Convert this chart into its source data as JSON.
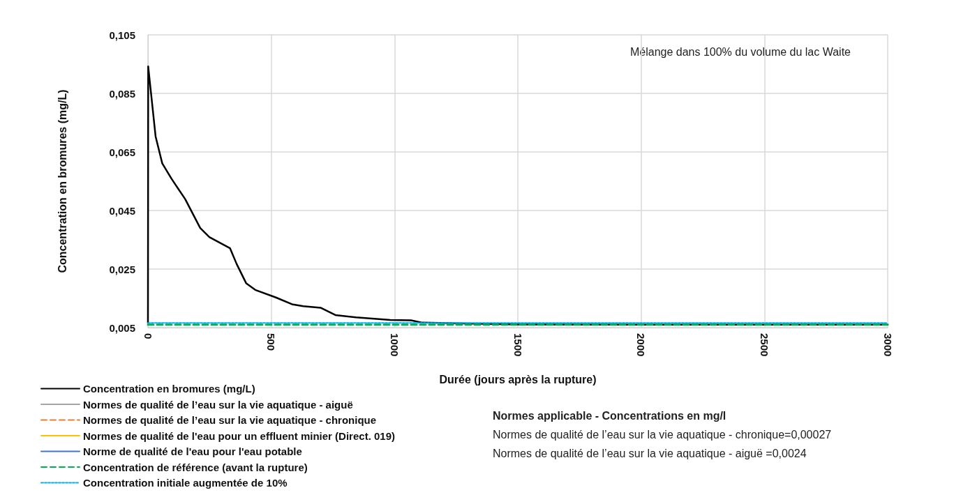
{
  "chart_data": {
    "type": "line",
    "xlabel": "Durée (jours après la rupture)",
    "ylabel": "Concentration en bromures (mg/L)",
    "xlim": [
      0,
      3000
    ],
    "xticks": [
      0,
      500,
      1000,
      1500,
      2000,
      2500,
      3000
    ],
    "ylim": [
      0.005,
      0.105
    ],
    "yticks": [
      {
        "value": 0.005,
        "label": "0,005"
      },
      {
        "value": 0.025,
        "label": "0,025"
      },
      {
        "value": 0.045,
        "label": "0,045"
      },
      {
        "value": 0.065,
        "label": "0,065"
      },
      {
        "value": 0.085,
        "label": "0,085"
      },
      {
        "value": 0.105,
        "label": "0,105"
      }
    ],
    "grid": true,
    "legend": "bottom left",
    "marker": "none",
    "annotations": [
      "Mélange dans 100% du volume du lac Waite",
      "Normes applicable - Concentrations en mg/l",
      "Normes de qualité de l’eau sur la vie aquatique - chronique=0,00027",
      "Normes de qualité de l’eau sur la vie aquatique - aiguë =0,0024"
    ],
    "series": [
      {
        "name": "Concentration en bromures (mg/L)",
        "color": "#000000",
        "line_style": "solid",
        "x": [
          0,
          1,
          31,
          58,
          96,
          151,
          212,
          249,
          333,
          360,
          398,
          435,
          519,
          584,
          630,
          700,
          760,
          844,
          983,
          1067,
          1113,
          1500,
          2000,
          2500,
          3000
        ],
        "values": [
          0.0066,
          0.0942,
          0.0703,
          0.0611,
          0.0558,
          0.0489,
          0.039,
          0.0359,
          0.0321,
          0.0267,
          0.0202,
          0.0179,
          0.0153,
          0.013,
          0.0123,
          0.0118,
          0.0093,
          0.0085,
          0.0076,
          0.0075,
          0.0067,
          0.0061,
          0.006,
          0.006,
          0.006
        ]
      },
      {
        "name": "Normes de qualité de l’eau sur la vie aquatique - aiguë",
        "color": "#a5a5a5",
        "line_style": "solid"
      },
      {
        "name": "Normes de qualité de l’eau sur la vie aquatique - chronique",
        "color": "#ed7d31",
        "line_style": "dashed"
      },
      {
        "name": "Normes de qualité de l'eau pour un effluent minier (Direct. 019)",
        "color": "#ffc000",
        "line_style": "solid"
      },
      {
        "name": "Norme de qualité de l'eau pour l'eau potable",
        "color": "#4472c4",
        "line_style": "solid"
      },
      {
        "name": "Concentration de référence (avant la rupture)",
        "color": "#00b050",
        "line_style": "dashed",
        "x": [
          0,
          3000
        ],
        "values": [
          0.006,
          0.006
        ]
      },
      {
        "name": "Concentration initiale augmentée de 10%",
        "color": "#00b0f0",
        "line_style": "dotted",
        "x": [
          0,
          3000
        ],
        "values": [
          0.0066,
          0.0066
        ]
      }
    ]
  }
}
